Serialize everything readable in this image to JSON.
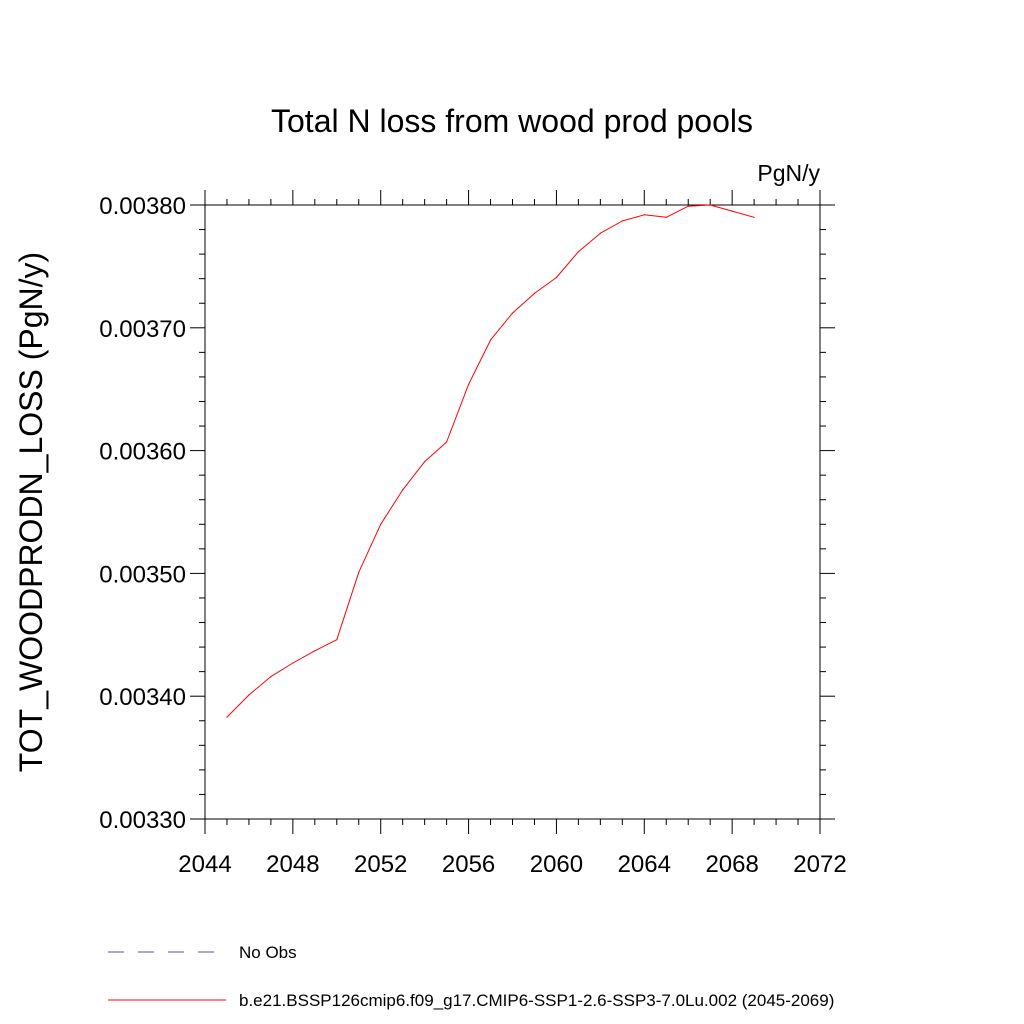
{
  "chart_data": {
    "type": "line",
    "title": "Total N loss from wood prod pools",
    "units": "PgN/y",
    "ylabel": "TOT_WOODPRODN_LOSS  (PgN/y)",
    "xlabel": "",
    "xlim": [
      2044,
      2072
    ],
    "ylim": [
      0.0033,
      0.0038
    ],
    "x_ticks": [
      "2044",
      "2048",
      "2052",
      "2056",
      "2060",
      "2064",
      "2068",
      "2072"
    ],
    "y_ticks": [
      "0.00330",
      "0.00340",
      "0.00350",
      "0.00360",
      "0.00370",
      "0.00380"
    ],
    "grid": false,
    "legend_position": "bottom",
    "series": [
      {
        "name": "b.e21.BSSP126cmip6.f09_g17.CMIP6-SSP1-2.6-SSP3-7.0Lu.002 (2045-2069)",
        "color": "#ff0000",
        "style": "solid",
        "x": [
          2045,
          2046,
          2047,
          2048,
          2049,
          2050,
          2051,
          2052,
          2053,
          2054,
          2055,
          2056,
          2057,
          2058,
          2059,
          2060,
          2061,
          2062,
          2063,
          2064,
          2065,
          2066,
          2067,
          2068,
          2069
        ],
        "y": [
          0.003383,
          0.003401,
          0.003416,
          0.003427,
          0.003437,
          0.003446,
          0.003501,
          0.00354,
          0.003568,
          0.003591,
          0.003607,
          0.003654,
          0.00369,
          0.003712,
          0.003728,
          0.003741,
          0.003762,
          0.003777,
          0.003787,
          0.003792,
          0.00379,
          0.003799,
          0.0038,
          0.003795,
          0.00379
        ]
      }
    ],
    "legend": [
      {
        "label": "No Obs",
        "color": "#5a4f9e",
        "style": "dashed"
      },
      {
        "label": "b.e21.BSSP126cmip6.f09_g17.CMIP6-SSP1-2.6-SSP3-7.0Lu.002 (2045-2069)",
        "color": "#ff0000",
        "style": "solid"
      }
    ]
  }
}
